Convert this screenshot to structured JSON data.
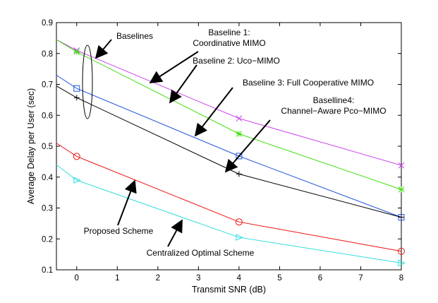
{
  "chart_data": {
    "type": "line",
    "title": "",
    "xlabel": "Transmit SNR (dB)",
    "ylabel": "Average Delay per User (sec)",
    "xlim": [
      -0.5,
      8
    ],
    "ylim": [
      0.1,
      0.9
    ],
    "xticks": [
      "0",
      "1",
      "2",
      "3",
      "4",
      "5",
      "6",
      "7",
      "8"
    ],
    "yticks": [
      "0.1",
      "0.2",
      "0.3",
      "0.4",
      "0.5",
      "0.6",
      "0.7",
      "0.8",
      "0.9"
    ],
    "grid": false,
    "series": [
      {
        "name": "Baseline 1: Coordinative MIMO",
        "color": "#cc44ee",
        "marker": "x",
        "x": [
          -0.5,
          0,
          4,
          8
        ],
        "y": [
          0.845,
          0.81,
          0.59,
          0.438
        ]
      },
      {
        "name": "Baseline 2: Uco-MIMO",
        "color": "#44dd11",
        "marker": "asterisk",
        "x": [
          -0.5,
          0,
          4,
          8
        ],
        "y": [
          0.845,
          0.805,
          0.54,
          0.36
        ]
      },
      {
        "name": "Baseline 3: Full Cooperative MIMO",
        "color": "#2255dd",
        "marker": "square",
        "x": [
          -0.5,
          0,
          4,
          8
        ],
        "y": [
          0.73,
          0.687,
          0.468,
          0.27
        ]
      },
      {
        "name": "Baselline4: Channel-Aware Pco-MIMO",
        "color": "#000000",
        "marker": "plus",
        "x": [
          -0.5,
          0,
          4,
          8
        ],
        "y": [
          0.695,
          0.657,
          0.41,
          0.27
        ]
      },
      {
        "name": "Proposed Scheme",
        "color": "#ee1111",
        "marker": "circle",
        "x": [
          -0.5,
          0,
          4,
          8
        ],
        "y": [
          0.51,
          0.467,
          0.255,
          0.16
        ]
      },
      {
        "name": "Centralized Optimal Scheme",
        "color": "#33dddd",
        "marker": "triangle-right",
        "x": [
          -0.5,
          0,
          4,
          8
        ],
        "y": [
          0.44,
          0.39,
          0.205,
          0.122
        ]
      }
    ],
    "annotations": [
      {
        "id": "baselines",
        "lines": [
          "Baselines"
        ]
      },
      {
        "id": "baseline1",
        "lines": [
          "Baseline 1:",
          "Coordinative MIMO"
        ]
      },
      {
        "id": "baseline2",
        "lines": [
          "Baseline 2: Uco−MIMO"
        ]
      },
      {
        "id": "baseline3",
        "lines": [
          "Baseline 3: Full Cooperative MIMO"
        ]
      },
      {
        "id": "baseline4",
        "lines": [
          "Baselline4:",
          "Channel−Aware Pco−MIMO"
        ]
      },
      {
        "id": "proposed",
        "lines": [
          "Proposed Scheme"
        ]
      },
      {
        "id": "centralized",
        "lines": [
          "Centralized Optimal Scheme"
        ]
      }
    ]
  }
}
